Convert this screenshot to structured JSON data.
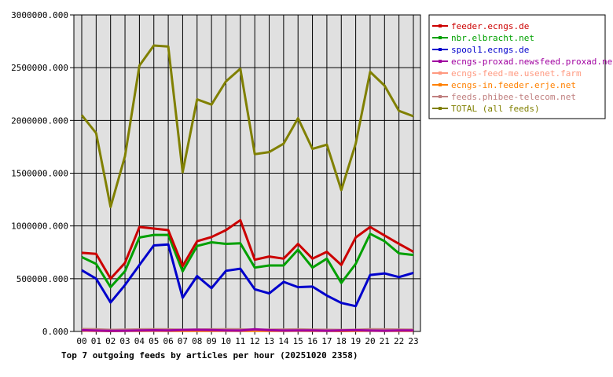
{
  "chart_data": {
    "type": "line",
    "caption": "Top 7 outgoing feeds by articles per hour (20251020 2358)",
    "x": [
      "00",
      "01",
      "02",
      "03",
      "04",
      "05",
      "06",
      "07",
      "08",
      "09",
      "10",
      "11",
      "12",
      "13",
      "14",
      "15",
      "16",
      "17",
      "18",
      "19",
      "20",
      "21",
      "22",
      "23"
    ],
    "ylim": [
      0,
      3000000
    ],
    "yticks": [
      0,
      500000,
      1000000,
      1500000,
      2000000,
      2500000,
      3000000
    ],
    "ytick_labels": [
      "0.000",
      "500000.000",
      "1000000.000",
      "1500000.000",
      "2000000.000",
      "2500000.000",
      "3000000.000"
    ],
    "grid": true,
    "legend_position": "right",
    "series": [
      {
        "name": "feeder.ecngs.de",
        "color": "#cc0000",
        "values": [
          745000,
          735000,
          500000,
          650000,
          990000,
          975000,
          960000,
          620000,
          855000,
          895000,
          960000,
          1055000,
          680000,
          710000,
          690000,
          830000,
          690000,
          755000,
          630000,
          890000,
          990000,
          910000,
          830000,
          755000
        ]
      },
      {
        "name": "nbr.elbracht.net",
        "color": "#00a000",
        "values": [
          705000,
          640000,
          420000,
          570000,
          890000,
          915000,
          915000,
          570000,
          810000,
          845000,
          830000,
          835000,
          605000,
          625000,
          625000,
          775000,
          605000,
          690000,
          460000,
          640000,
          925000,
          855000,
          740000,
          725000
        ]
      },
      {
        "name": "spool1.ecngs.de",
        "color": "#0000cc",
        "values": [
          580000,
          500000,
          275000,
          440000,
          630000,
          815000,
          825000,
          320000,
          525000,
          410000,
          575000,
          595000,
          400000,
          360000,
          470000,
          420000,
          425000,
          340000,
          270000,
          240000,
          535000,
          550000,
          515000,
          555000
        ]
      },
      {
        "name": "ecngs-proxad.newsfeed.proxad.net",
        "color": "#a000a0",
        "values": [
          12000,
          8000,
          6000,
          7000,
          9000,
          11000,
          10000,
          14000,
          16000,
          13000,
          9000,
          8000,
          20000,
          12000,
          8000,
          9000,
          10000,
          7000,
          9000,
          12000,
          8000,
          7000,
          10000,
          9000
        ]
      },
      {
        "name": "ecngs-feed-me.usenet.farm",
        "color": "#ff9980",
        "values": [
          20000,
          18000,
          12000,
          14000,
          16000,
          17000,
          15000,
          12000,
          13000,
          14000,
          16000,
          15000,
          12000,
          13000,
          14000,
          15000,
          13000,
          12000,
          11000,
          12000,
          15000,
          14000,
          13000,
          12000
        ]
      },
      {
        "name": "ecngs-in.feeder.erje.net",
        "color": "#ff8000",
        "values": [
          8000,
          6000,
          4000,
          5000,
          6000,
          7000,
          6000,
          5000,
          6000,
          6000,
          7000,
          6000,
          5000,
          5000,
          6000,
          7000,
          6000,
          5000,
          4000,
          5000,
          7000,
          6000,
          6000,
          5000
        ]
      },
      {
        "name": "feeds.phibee-telecom.net",
        "color": "#c08080",
        "values": [
          22000,
          20000,
          15000,
          17000,
          19000,
          20000,
          19000,
          16000,
          18000,
          19000,
          20000,
          19000,
          16000,
          17000,
          18000,
          19000,
          17000,
          16000,
          14000,
          16000,
          20000,
          19000,
          18000,
          17000
        ]
      },
      {
        "name": "TOTAL (all feeds)",
        "color": "#808000",
        "values": [
          2050000,
          1880000,
          1180000,
          1660000,
          2520000,
          2710000,
          2700000,
          1510000,
          2200000,
          2150000,
          2370000,
          2490000,
          1680000,
          1700000,
          1780000,
          2020000,
          1730000,
          1770000,
          1340000,
          1780000,
          2460000,
          2330000,
          2090000,
          2040000
        ]
      }
    ]
  }
}
